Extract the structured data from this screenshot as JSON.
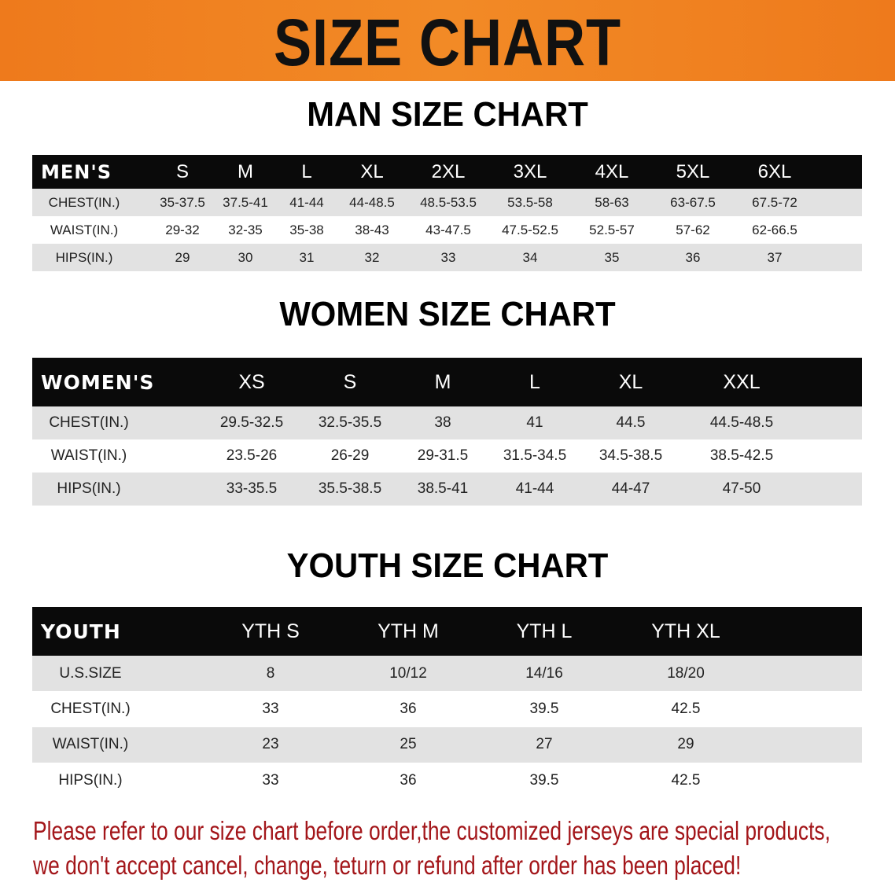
{
  "banner_title": "SIZE CHART",
  "men": {
    "title": "MAN SIZE CHART",
    "header": [
      "MEN'S",
      "S",
      "M",
      "L",
      "XL",
      "2XL",
      "3XL",
      "4XL",
      "5XL",
      "6XL"
    ],
    "rows": [
      [
        "CHEST(IN.)",
        "35-37.5",
        "37.5-41",
        "41-44",
        "44-48.5",
        "48.5-53.5",
        "53.5-58",
        "58-63",
        "63-67.5",
        "67.5-72"
      ],
      [
        "WAIST(IN.)",
        "29-32",
        "32-35",
        "35-38",
        "38-43",
        "43-47.5",
        "47.5-52.5",
        "52.5-57",
        "57-62",
        "62-66.5"
      ],
      [
        "HIPS(IN.)",
        "29",
        "30",
        "31",
        "32",
        "33",
        "34",
        "35",
        "36",
        "37"
      ]
    ]
  },
  "women": {
    "title": "WOMEN SIZE CHART",
    "header": [
      "WOMEN'S",
      "XS",
      "S",
      "M",
      "L",
      "XL",
      "XXL"
    ],
    "rows": [
      [
        "CHEST(IN.)",
        "29.5-32.5",
        "32.5-35.5",
        "38",
        "41",
        "44.5",
        "44.5-48.5"
      ],
      [
        "WAIST(IN.)",
        "23.5-26",
        "26-29",
        "29-31.5",
        "31.5-34.5",
        "34.5-38.5",
        "38.5-42.5"
      ],
      [
        "HIPS(IN.)",
        "33-35.5",
        "35.5-38.5",
        "38.5-41",
        "41-44",
        "44-47",
        "47-50"
      ]
    ]
  },
  "youth": {
    "title": "YOUTH SIZE CHART",
    "header": [
      "YOUTH",
      "YTH S",
      "YTH M",
      "YTH L",
      "YTH XL"
    ],
    "rows": [
      [
        "U.S.SIZE",
        "8",
        "10/12",
        "14/16",
        "18/20"
      ],
      [
        "CHEST(IN.)",
        "33",
        "36",
        "39.5",
        "42.5"
      ],
      [
        "WAIST(IN.)",
        "23",
        "25",
        "27",
        "29"
      ],
      [
        "HIPS(IN.)",
        "33",
        "36",
        "39.5",
        "42.5"
      ]
    ]
  },
  "notice": [
    "Please refer to our size chart before order,the customized jerseys are special products,",
    "we don't accept cancel, change, teturn or refund after order has been placed!"
  ],
  "colors": {
    "banner": "#ee7a1c",
    "header_row": "#0a0a0a",
    "stripe": "#e2e2e2",
    "notice": "#a3161a"
  }
}
